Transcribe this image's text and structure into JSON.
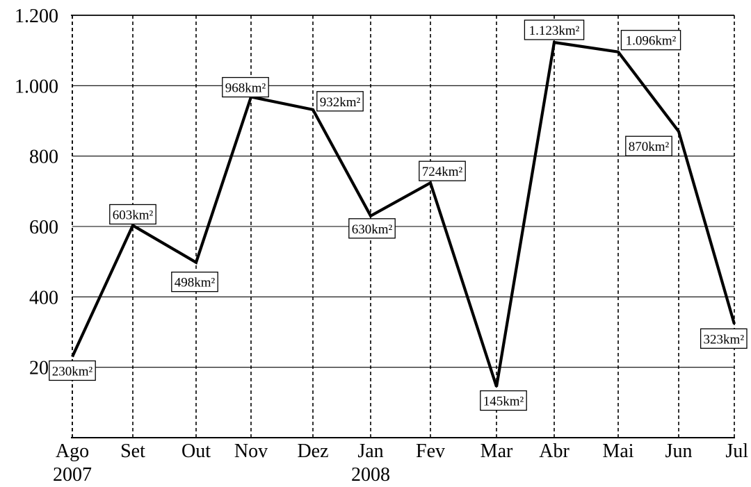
{
  "chart_data": {
    "type": "line",
    "categories": [
      "Ago",
      "Set",
      "Out",
      "Nov",
      "Dez",
      "Jan",
      "Fev",
      "Mar",
      "Abr",
      "Mai",
      "Jun",
      "Jul"
    ],
    "category_years": [
      "2007",
      "",
      "",
      "",
      "",
      "2008",
      "",
      "",
      "",
      "",
      "",
      ""
    ],
    "values": [
      230,
      603,
      498,
      968,
      932,
      630,
      724,
      145,
      1123,
      1096,
      870,
      323
    ],
    "data_labels": [
      "230km²",
      "603km²",
      "498km²",
      "968km²",
      "932km²",
      "630km²",
      "724km²",
      "145km²",
      "1.123km²",
      "1.096km²",
      "870km²",
      "323km²"
    ],
    "y_ticks": [
      200,
      400,
      600,
      800,
      1000,
      1200
    ],
    "y_tick_labels": [
      "200",
      "400",
      "600",
      "800",
      "1.000",
      "1.200"
    ],
    "ylim": [
      0,
      1200
    ],
    "title": "",
    "xlabel": "",
    "ylabel": "",
    "grid": {
      "horizontal": "solid",
      "vertical": "dashed"
    },
    "legend": "none",
    "line_color": "#000000"
  }
}
